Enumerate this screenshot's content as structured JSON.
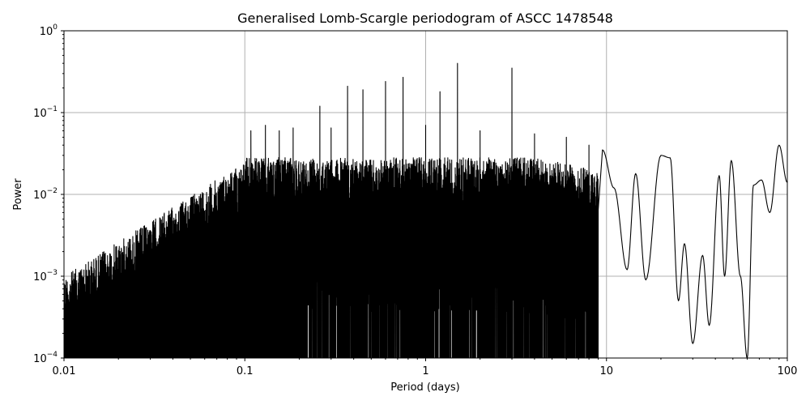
{
  "chart_data": {
    "type": "line",
    "title": "Generalised Lomb-Scargle periodogram of ASCC 1478548",
    "xlabel": "Period (days)",
    "ylabel": "Power",
    "xscale": "log",
    "yscale": "log",
    "xlim": [
      0.01,
      100
    ],
    "ylim": [
      0.0001,
      1
    ],
    "grid": "major",
    "x_ticks": [
      {
        "value": 0.01,
        "label": "0.01"
      },
      {
        "value": 0.1,
        "label": "0.1"
      },
      {
        "value": 1,
        "label": "1"
      },
      {
        "value": 10,
        "label": "10"
      },
      {
        "value": 100,
        "label": "100"
      }
    ],
    "y_ticks": [
      {
        "value": 0.0001,
        "base": "10",
        "exp": "−4"
      },
      {
        "value": 0.001,
        "base": "10",
        "exp": "−3"
      },
      {
        "value": 0.01,
        "base": "10",
        "exp": "−2"
      },
      {
        "value": 0.1,
        "base": "10",
        "exp": "−1"
      },
      {
        "value": 1,
        "base": "10",
        "exp": "0"
      }
    ],
    "series": [
      {
        "color": "#000000",
        "peaks": [
          {
            "period": 0.108,
            "power": 0.06
          },
          {
            "period": 0.13,
            "power": 0.07
          },
          {
            "period": 0.155,
            "power": 0.06
          },
          {
            "period": 0.185,
            "power": 0.065
          },
          {
            "period": 0.26,
            "power": 0.12
          },
          {
            "period": 0.3,
            "power": 0.065
          },
          {
            "period": 0.37,
            "power": 0.21
          },
          {
            "period": 0.45,
            "power": 0.19
          },
          {
            "period": 0.6,
            "power": 0.24
          },
          {
            "period": 0.75,
            "power": 0.27
          },
          {
            "period": 1.0,
            "power": 0.07
          },
          {
            "period": 1.2,
            "power": 0.18
          },
          {
            "period": 1.5,
            "power": 0.4
          },
          {
            "period": 2.0,
            "power": 0.06
          },
          {
            "period": 3.0,
            "power": 0.35
          },
          {
            "period": 4.0,
            "power": 0.055
          },
          {
            "period": 6.0,
            "power": 0.05
          },
          {
            "period": 8.0,
            "power": 0.04
          }
        ],
        "low_period_points": [
          {
            "period": 9.5,
            "power": 0.035
          },
          {
            "period": 11.0,
            "power": 0.012
          },
          {
            "period": 13.0,
            "power": 0.0012
          },
          {
            "period": 14.5,
            "power": 0.018
          },
          {
            "period": 16.5,
            "power": 0.0009
          },
          {
            "period": 20.0,
            "power": 0.03
          },
          {
            "period": 22.5,
            "power": 0.028
          },
          {
            "period": 25.0,
            "power": 0.0005
          },
          {
            "period": 27.0,
            "power": 0.0025
          },
          {
            "period": 30.0,
            "power": 0.00015
          },
          {
            "period": 34.0,
            "power": 0.0018
          },
          {
            "period": 37.0,
            "power": 0.00025
          },
          {
            "period": 42.0,
            "power": 0.017
          },
          {
            "period": 45.0,
            "power": 0.001
          },
          {
            "period": 49.0,
            "power": 0.026
          },
          {
            "period": 55.0,
            "power": 0.001
          },
          {
            "period": 60.0,
            "power": 0.0001
          },
          {
            "period": 65.0,
            "power": 0.013
          },
          {
            "period": 72.0,
            "power": 0.015
          },
          {
            "period": 80.0,
            "power": 0.006
          },
          {
            "period": 90.0,
            "power": 0.04
          },
          {
            "period": 100.0,
            "power": 0.014
          }
        ]
      }
    ]
  }
}
